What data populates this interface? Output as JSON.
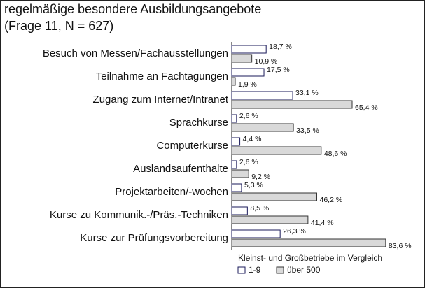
{
  "chart_data": {
    "type": "bar",
    "orientation": "horizontal",
    "title": "regelmäßige besondere Ausbildungsangebote",
    "subtitle": "(Frage 11, N = 627)",
    "legend_title": "Kleinst- und Großbetriebe im Vergleich",
    "categories": [
      "Besuch von Messen/Fachausstellungen",
      "Teilnahme an Fachtagungen",
      "Zugang zum Internet/Intranet",
      "Sprachkurse",
      "Computerkurse",
      "Auslandsaufenthalte",
      "Projektarbeiten/-wochen",
      "Kurse zu Kommunik.-/Präs.-Techniken",
      "Kurse zur Prüfungsvorbereitung"
    ],
    "series": [
      {
        "name": "1-9",
        "color": "#ffffff",
        "stroke": "#1a1a5a",
        "values": [
          18.7,
          17.5,
          33.1,
          2.6,
          4.4,
          2.6,
          5.3,
          8.5,
          26.3
        ],
        "value_labels": [
          "18,7 %",
          "17,5 %",
          "33,1 %",
          "2,6 %",
          "4,4 %",
          "2,6 %",
          "5,3 %",
          "8,5 %",
          "26,3 %"
        ]
      },
      {
        "name": "über 500",
        "color": "#d9d9d9",
        "stroke": "#333333",
        "values": [
          10.9,
          1.9,
          65.4,
          33.5,
          48.6,
          9.2,
          46.2,
          41.4,
          83.6
        ],
        "value_labels": [
          "10,9 %",
          "1,9 %",
          "65,4 %",
          "33,5 %",
          "48,6 %",
          "9,2 %",
          "46,2 %",
          "41,4 %",
          "83,6 %"
        ]
      }
    ]
  }
}
